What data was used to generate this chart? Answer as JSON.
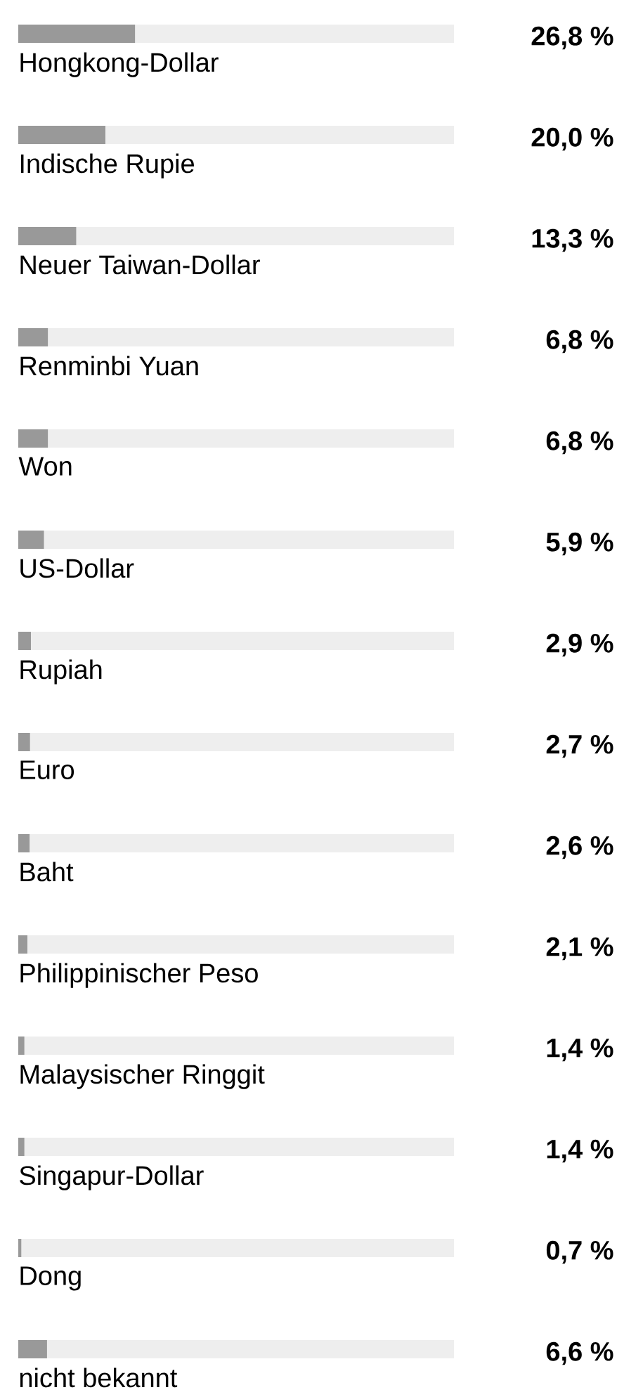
{
  "chart_data": {
    "type": "bar",
    "orientation": "horizontal",
    "stacked": true,
    "categories": [
      "Hongkong-Dollar",
      "Indische Rupie",
      "Neuer Taiwan-Dollar",
      "Renminbi Yuan",
      "Won",
      "US-Dollar",
      "Rupiah",
      "Euro",
      "Baht",
      "Philippinischer Peso",
      "Malaysischer Ringgit",
      "Singapur-Dollar",
      "Dong",
      "nicht bekannt"
    ],
    "series": [
      {
        "color": "#999999",
        "values": [
          26.8,
          20.0,
          13.3,
          6.8,
          6.8,
          5.9,
          2.9,
          2.7,
          2.6,
          2.1,
          1.4,
          1.4,
          0.7,
          6.6
        ],
        "value_labels": [
          "26,8 %",
          "20,0 %",
          "13,3 %",
          "6,8 %",
          "6,8 %",
          "5,9 %",
          "2,9 %",
          "2,7 %",
          "2,6 %",
          "2,1 %",
          "1,4 %",
          "1,4 %",
          "0,7 %",
          "6,6 %"
        ]
      },
      {
        "color": "#eeeeee",
        "values": [
          73.2,
          80.0,
          86.7,
          93.2,
          93.2,
          94.1,
          97.1,
          97.3,
          97.4,
          97.9,
          98.6,
          98.6,
          99.3,
          93.4
        ]
      }
    ],
    "xlim": [
      0,
      100
    ]
  }
}
